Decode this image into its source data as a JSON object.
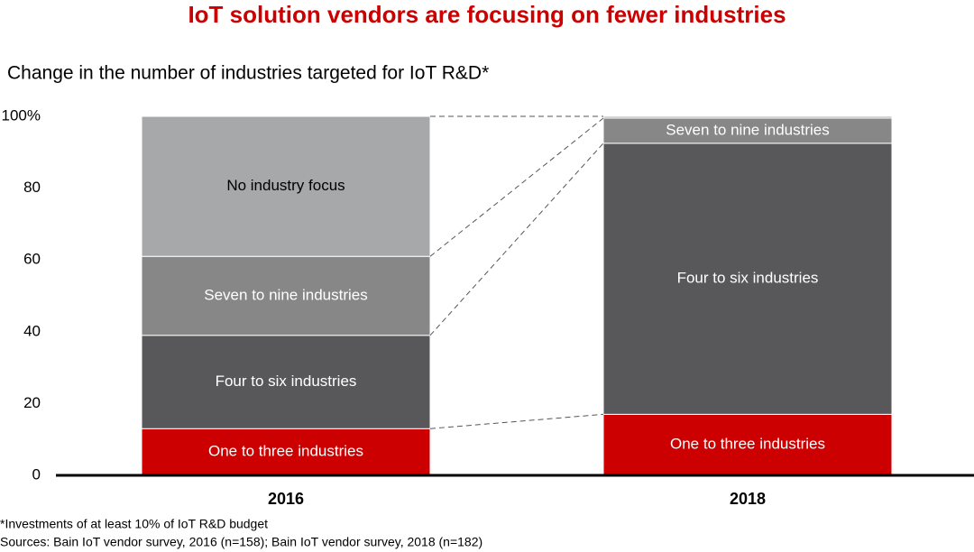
{
  "chart_data": {
    "type": "stacked-bar",
    "title": "IoT solution vendors are focusing on fewer industries",
    "subtitle": "Change in the number of industries targeted for IoT R&D*",
    "categories": [
      "2016",
      "2018"
    ],
    "series": [
      {
        "name": "One to three industries",
        "color": "#cc0000",
        "values": [
          13,
          17
        ]
      },
      {
        "name": "Four to six industries",
        "color": "#58585a",
        "values": [
          26,
          75.5
        ]
      },
      {
        "name": "Seven to nine industries",
        "color": "#878787",
        "values": [
          22,
          7
        ]
      },
      {
        "name": "No industry focus",
        "color": "#a7a8aa",
        "values": [
          39,
          0.5
        ]
      }
    ],
    "ylim": [
      0,
      100
    ],
    "yticks": [
      0,
      20,
      40,
      60,
      80,
      {
        "value": 100,
        "label": "100%"
      }
    ],
    "footnotes": [
      "*Investments of at least 10% of IoT R&D budget",
      "Sources: Bain IoT vendor survey, 2016 (n=158); Bain IoT vendor survey, 2018 (n=182)"
    ]
  }
}
